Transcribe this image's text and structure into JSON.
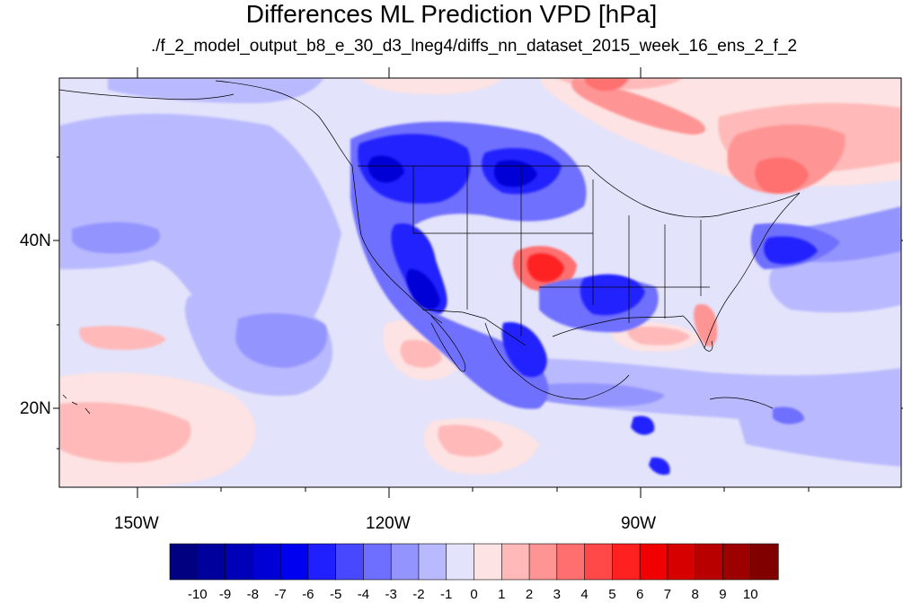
{
  "title": "Differences ML Prediction VPD [hPa]",
  "subtitle": "./f_2_model_output_b8_e_30_d3_lneg4/diffs_nn_dataset_2015_week_16_ens_2_f_2",
  "lat_labels": [
    "40N",
    "20N"
  ],
  "lon_labels": [
    "150W",
    "120W",
    "90W"
  ],
  "colorbar": {
    "labels": [
      "-10",
      "-9",
      "-8",
      "-7",
      "-6",
      "-5",
      "-4",
      "-3",
      "-2",
      "-1",
      "0",
      "1",
      "2",
      "3",
      "4",
      "5",
      "6",
      "7",
      "8",
      "9",
      "10"
    ],
    "colors": [
      "#000080",
      "#00009c",
      "#0000b8",
      "#0000d6",
      "#0000f0",
      "#2020ff",
      "#4848ff",
      "#6f6fff",
      "#9494ff",
      "#b9b9ff",
      "#e3e3fb",
      "#fde3e3",
      "#ffb9b9",
      "#ff9494",
      "#ff6f6f",
      "#ff4848",
      "#ff2020",
      "#f00000",
      "#d60000",
      "#b80000",
      "#9c0000",
      "#800000"
    ]
  },
  "map": {
    "domain": {
      "lon_min": -160,
      "lon_max": -62,
      "lat_min": 10,
      "lat_max": 59
    },
    "background_color": "#e3e3fb"
  }
}
